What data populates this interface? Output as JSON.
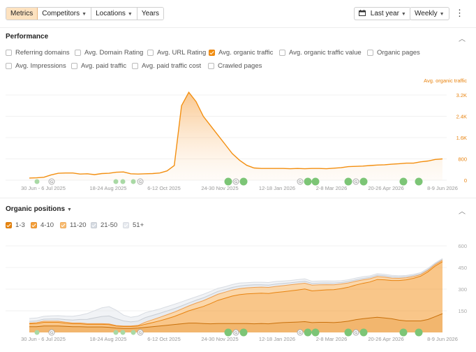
{
  "toolbar": {
    "tabs": [
      {
        "label": "Metrics",
        "active": true
      },
      {
        "label": "Competitors",
        "dropdown": true
      },
      {
        "label": "Locations",
        "dropdown": true
      },
      {
        "label": "Years",
        "dropdown": false
      }
    ],
    "date_range": "Last year",
    "interval": "Weekly"
  },
  "performance": {
    "title": "Performance",
    "metrics": [
      {
        "label": "Referring domains",
        "checked": false
      },
      {
        "label": "Avg. Domain Rating",
        "checked": false
      },
      {
        "label": "Avg. URL Rating",
        "checked": false
      },
      {
        "label": "Avg. organic traffic",
        "checked": true
      },
      {
        "label": "Avg. organic traffic value",
        "checked": false
      },
      {
        "label": "Organic pages",
        "checked": false
      },
      {
        "label": "Avg. Impressions",
        "checked": false
      },
      {
        "label": "Avg. paid traffic",
        "checked": false
      },
      {
        "label": "Avg. paid traffic cost",
        "checked": false
      },
      {
        "label": "Crawled pages",
        "checked": false
      }
    ]
  },
  "positions": {
    "title": "Organic positions",
    "legend": [
      {
        "label": "1-3",
        "color": "#e9860d"
      },
      {
        "label": "4-10",
        "color": "#f5a03b"
      },
      {
        "label": "11-20",
        "color": "#f8bc72"
      },
      {
        "label": "21-50",
        "color": "#d6dbe2"
      },
      {
        "label": "51+",
        "color": "#e6e9ee"
      }
    ]
  },
  "x_ticks": [
    "30 Jun - 6 Jul 2025",
    "18-24 Aug 2025",
    "6-12 Oct 2025",
    "24-30 Nov 2025",
    "12-18 Jan 2026",
    "2-8 Mar 2026",
    "20-26 Apr 2026",
    "8-9 Jun 2026"
  ],
  "annotation_markers": [
    "G",
    "G",
    "G",
    "G",
    "G"
  ],
  "chart_data": [
    {
      "type": "area",
      "series": [
        {
          "name": "Avg. organic traffic",
          "color": "#f38f10",
          "values": [
            80,
            90,
            110,
            200,
            260,
            270,
            270,
            230,
            240,
            210,
            250,
            260,
            300,
            310,
            240,
            230,
            240,
            250,
            270,
            350,
            550,
            2800,
            3300,
            2950,
            2400,
            2050,
            1700,
            1350,
            1000,
            750,
            560,
            460,
            440,
            440,
            440,
            440,
            430,
            440,
            430,
            440,
            440,
            430,
            450,
            470,
            510,
            520,
            530,
            550,
            570,
            580,
            600,
            620,
            640,
            640,
            690,
            720,
            780,
            800
          ]
        }
      ],
      "y_ticks": [
        "3.2K",
        "2.4K",
        "1.6K",
        "800",
        "0"
      ],
      "ylim": [
        0,
        3200
      ],
      "axis_label": "Avg. organic traffic"
    },
    {
      "type": "area",
      "stacked": true,
      "series": [
        {
          "name": "1-3",
          "color": "#e9860d",
          "values": [
            40,
            40,
            45,
            45,
            45,
            42,
            40,
            40,
            38,
            38,
            38,
            36,
            30,
            28,
            28,
            30,
            35,
            40,
            45,
            50,
            55,
            60,
            65,
            65,
            62,
            60,
            62,
            62,
            62,
            62,
            62,
            60,
            62,
            60,
            65,
            68,
            70,
            72,
            75,
            68,
            70,
            70,
            68,
            72,
            78,
            88,
            95,
            100,
            105,
            100,
            95,
            85,
            80,
            80,
            80,
            90,
            110,
            130
          ]
        },
        {
          "name": "4-10",
          "color": "#f5a03b",
          "values": [
            20,
            22,
            25,
            25,
            25,
            22,
            20,
            20,
            18,
            18,
            18,
            18,
            14,
            13,
            13,
            14,
            22,
            28,
            36,
            45,
            56,
            70,
            85,
            100,
            118,
            140,
            160,
            175,
            190,
            200,
            205,
            210,
            210,
            210,
            212,
            214,
            218,
            222,
            226,
            220,
            222,
            225,
            228,
            232,
            235,
            240,
            245,
            250,
            262,
            265,
            265,
            275,
            285,
            295,
            310,
            330,
            350,
            360
          ]
        },
        {
          "name": "11-20",
          "color": "#f8bc72",
          "values": [
            5,
            6,
            8,
            8,
            8,
            7,
            6,
            6,
            5,
            5,
            5,
            5,
            4,
            4,
            4,
            5,
            14,
            20,
            24,
            28,
            30,
            32,
            34,
            38,
            40,
            42,
            42,
            42,
            42,
            42,
            42,
            42,
            42,
            42,
            42,
            42,
            42,
            42,
            40,
            40,
            38,
            36,
            34,
            32,
            30,
            26,
            24,
            22,
            20,
            18,
            16,
            15,
            14,
            12,
            10,
            10,
            10,
            10
          ]
        },
        {
          "name": "21-50",
          "color": "#d6dbe2",
          "values": [
            12,
            12,
            14,
            15,
            16,
            18,
            20,
            24,
            30,
            40,
            50,
            55,
            48,
            35,
            28,
            30,
            32,
            30,
            28,
            26,
            24,
            22,
            20,
            20,
            20,
            20,
            20,
            18,
            18,
            18,
            18,
            18,
            16,
            16,
            16,
            16,
            14,
            14,
            14,
            12,
            12,
            12,
            12,
            10,
            10,
            10,
            10,
            10,
            10,
            10,
            10,
            8,
            8,
            8,
            6,
            6,
            6,
            6
          ]
        },
        {
          "name": "51+",
          "color": "#e6e9ee",
          "values": [
            20,
            20,
            20,
            22,
            22,
            24,
            26,
            30,
            40,
            50,
            60,
            65,
            58,
            40,
            32,
            34,
            34,
            32,
            30,
            30,
            30,
            28,
            26,
            24,
            24,
            22,
            22,
            20,
            20,
            20,
            18,
            18,
            18,
            18,
            18,
            16,
            16,
            16,
            16,
            14,
            14,
            14,
            14,
            12,
            12,
            12,
            12,
            10,
            10,
            10,
            10,
            10,
            8,
            8,
            8,
            8,
            6,
            6
          ]
        }
      ],
      "y_ticks": [
        "600",
        "450",
        "300",
        "150"
      ],
      "ylim": [
        0,
        600
      ]
    }
  ]
}
